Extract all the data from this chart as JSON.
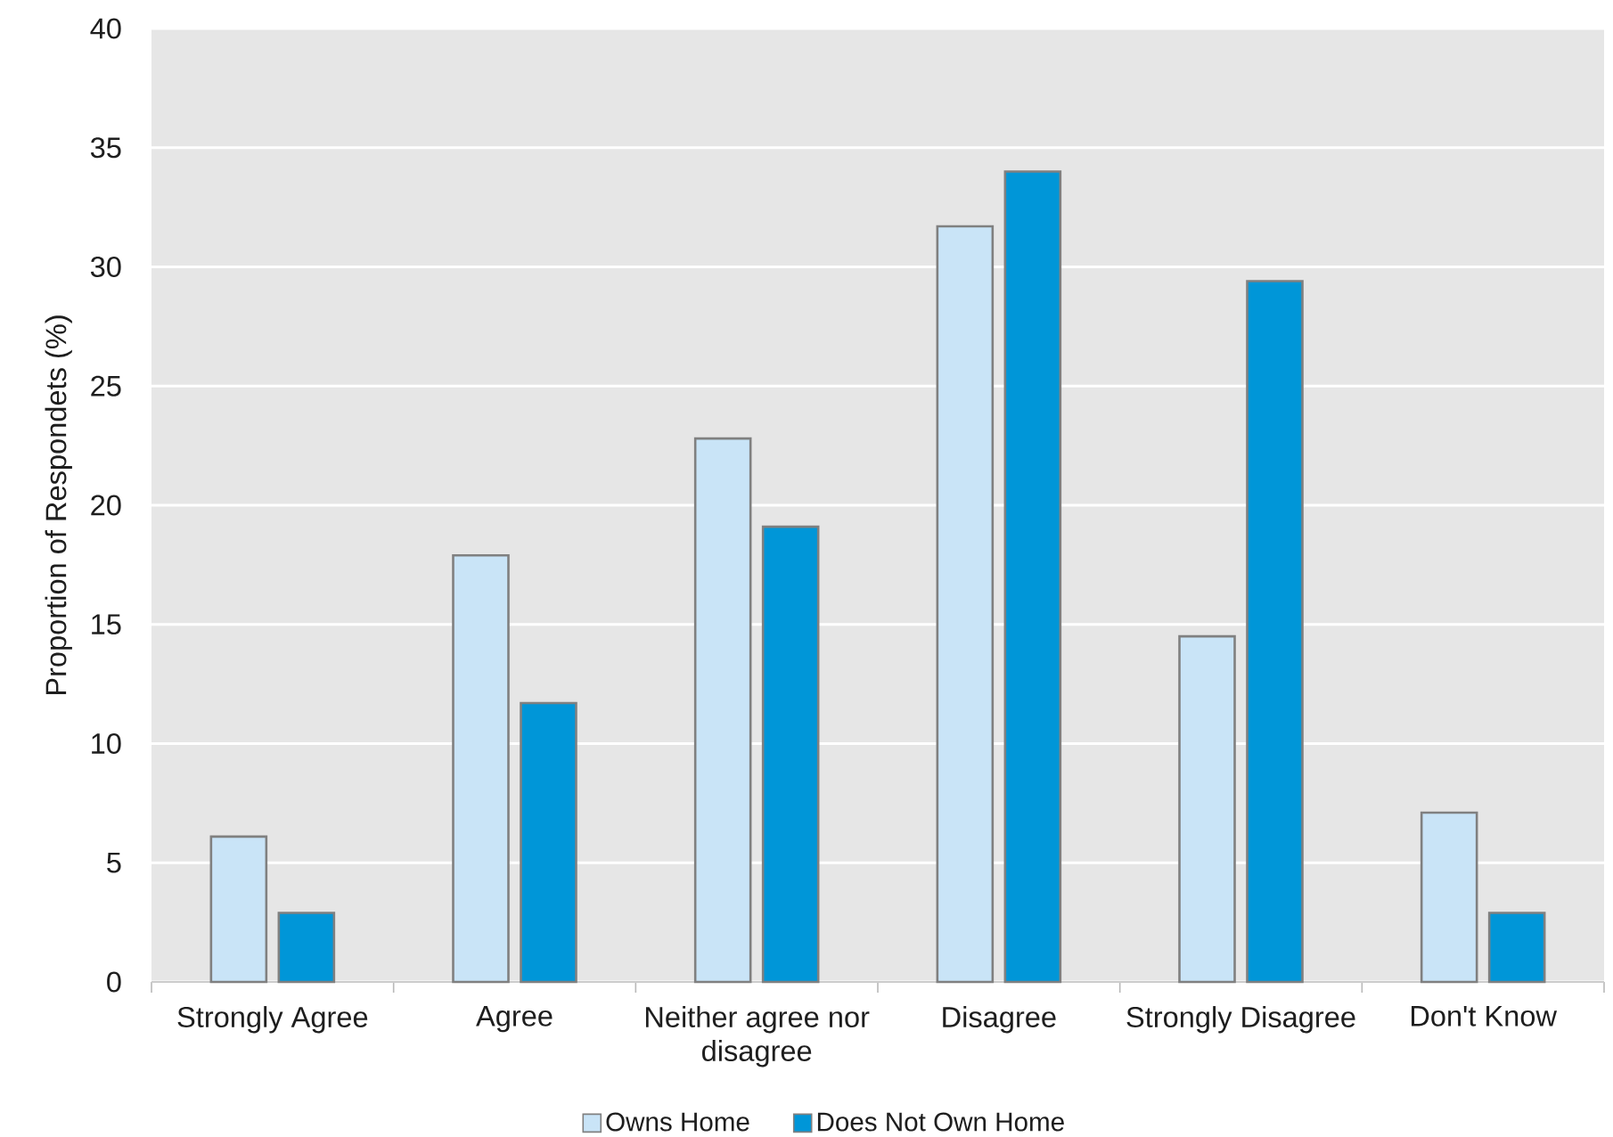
{
  "chart_data": {
    "type": "bar",
    "ylabel": "Proportion of Respondets (%)",
    "categories": [
      "Strongly Agree",
      "Agree",
      "Neither agree nor disagree",
      "Disagree",
      "Strongly Disagree",
      "Don't Know"
    ],
    "series": [
      {
        "name": "Owns Home",
        "color": "#c9e4f7",
        "values": [
          6.1,
          17.9,
          22.8,
          31.7,
          14.5,
          7.1
        ]
      },
      {
        "name": "Does Not Own Home",
        "color": "#0096d8",
        "values": [
          2.9,
          11.7,
          19.1,
          34.0,
          29.4,
          2.9
        ]
      }
    ],
    "ylim": [
      0,
      40
    ],
    "yticks": [
      0,
      5,
      10,
      15,
      20,
      25,
      30,
      35,
      40
    ],
    "grid": "y",
    "legend": "bottom"
  }
}
